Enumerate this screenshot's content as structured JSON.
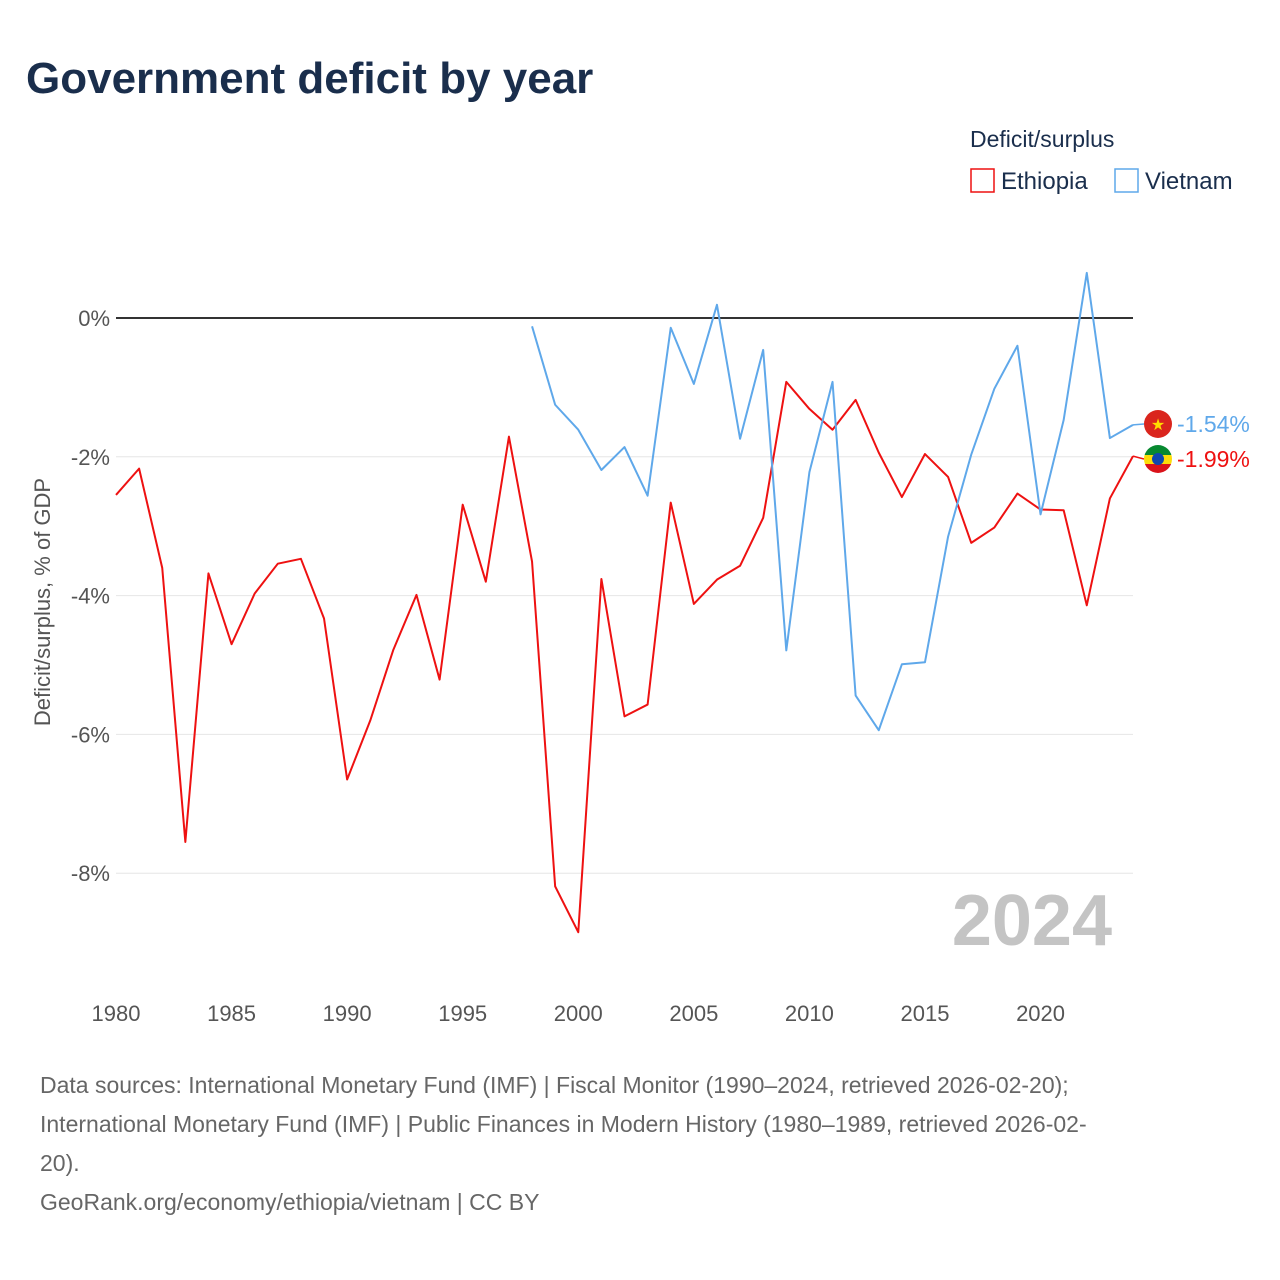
{
  "chart_data": {
    "type": "line",
    "title": "Government deficit by year",
    "xlabel": "",
    "ylabel": "Deficit/surplus, % of GDP",
    "xlim": [
      1980,
      2024
    ],
    "ylim": [
      -9.5,
      1.2
    ],
    "x_ticks": [
      "1980",
      "1985",
      "1990",
      "1995",
      "2000",
      "2005",
      "2010",
      "2015",
      "2020"
    ],
    "y_ticks": [
      {
        "v": 0,
        "label": "0%"
      },
      {
        "v": -2,
        "label": "-2%"
      },
      {
        "v": -4,
        "label": "-4%"
      },
      {
        "v": -6,
        "label": "-6%"
      },
      {
        "v": -8,
        "label": "-8%"
      }
    ],
    "grid": true,
    "legend_title": "Deficit/surplus",
    "legend_position": "top-right",
    "year_label": "2024",
    "series": [
      {
        "name": "Ethiopia",
        "color": "#ee1111",
        "end_label": "-1.99%",
        "flag": "ethiopia-flag",
        "x": [
          1980,
          1981,
          1982,
          1983,
          1984,
          1985,
          1986,
          1987,
          1988,
          1989,
          1990,
          1991,
          1992,
          1993,
          1994,
          1995,
          1996,
          1997,
          1998,
          1999,
          2000,
          2001,
          2002,
          2003,
          2004,
          2005,
          2006,
          2007,
          2008,
          2009,
          2010,
          2011,
          2012,
          2013,
          2014,
          2015,
          2016,
          2017,
          2018,
          2019,
          2020,
          2021,
          2022,
          2023,
          2024
        ],
        "values": [
          -2.55,
          -2.17,
          -3.6,
          -7.55,
          -3.68,
          -4.7,
          -3.97,
          -3.54,
          -3.47,
          -4.33,
          -6.65,
          -5.8,
          -4.78,
          -3.99,
          -5.21,
          -2.69,
          -3.8,
          -1.71,
          -3.51,
          -8.19,
          -8.85,
          -3.76,
          -5.74,
          -5.57,
          -2.66,
          -4.12,
          -3.77,
          -3.57,
          -2.88,
          -0.92,
          -1.31,
          -1.61,
          -1.18,
          -1.94,
          -2.58,
          -1.96,
          -2.29,
          -3.24,
          -3.02,
          -2.53,
          -2.76,
          -2.77,
          -4.14,
          -2.6,
          -1.99
        ]
      },
      {
        "name": "Vietnam",
        "color": "#5fa8ea",
        "end_label": "-1.54%",
        "flag": "vietnam-flag",
        "x": [
          1998,
          1999,
          2000,
          2001,
          2002,
          2003,
          2004,
          2005,
          2006,
          2007,
          2008,
          2009,
          2010,
          2011,
          2012,
          2013,
          2014,
          2015,
          2016,
          2017,
          2018,
          2019,
          2020,
          2021,
          2022,
          2023,
          2024
        ],
        "values": [
          -0.12,
          -1.25,
          -1.61,
          -2.19,
          -1.86,
          -2.56,
          -0.14,
          -0.95,
          0.19,
          -1.74,
          -0.46,
          -4.79,
          -2.22,
          -0.92,
          -5.44,
          -5.94,
          -4.99,
          -4.96,
          -3.15,
          -1.97,
          -1.02,
          -0.4,
          -2.83,
          -1.47,
          0.65,
          -1.73,
          -1.54
        ]
      }
    ]
  },
  "footer": {
    "line1": "Data sources: International Monetary Fund (IMF) | Fiscal Monitor (1990–2024, retrieved 2026-02-20);",
    "line2": "International Monetary Fund (IMF) | Public Finances in Modern History (1980–1989, retrieved 2026-02-",
    "line3": "20).",
    "line4": "GeoRank.org/economy/ethiopia/vietnam | CC BY"
  }
}
